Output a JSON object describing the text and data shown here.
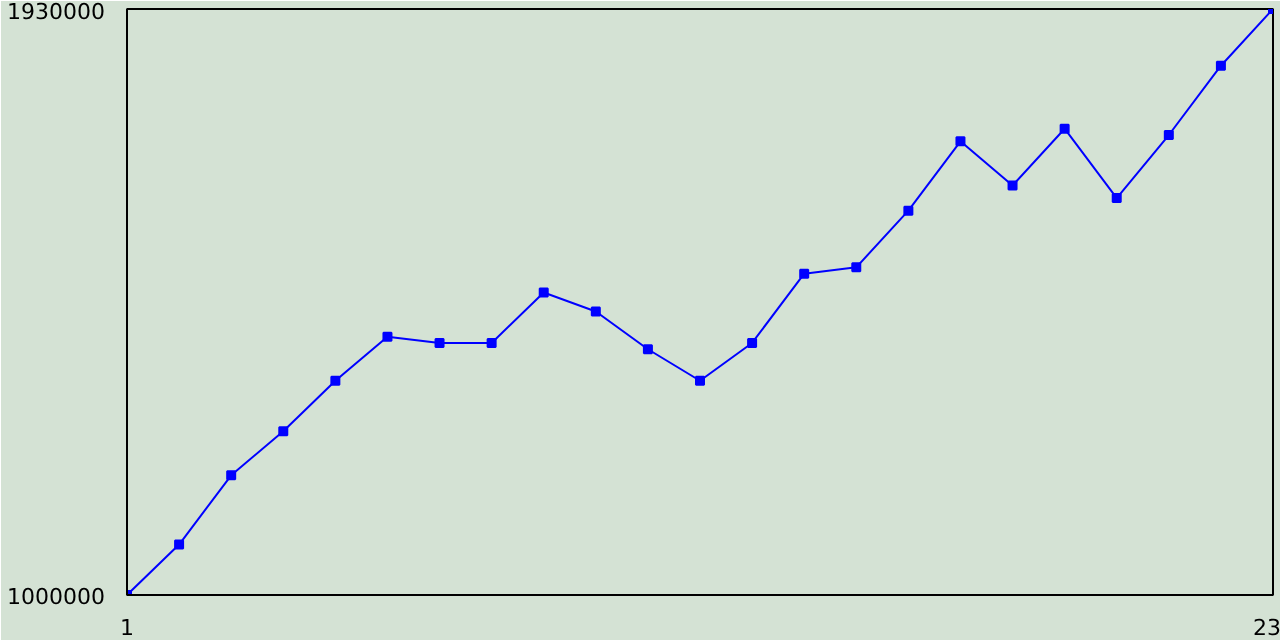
{
  "chart_data": {
    "type": "line",
    "x": [
      1,
      2,
      3,
      4,
      5,
      6,
      7,
      8,
      9,
      10,
      11,
      12,
      13,
      14,
      15,
      16,
      17,
      18,
      19,
      20,
      21,
      22,
      23
    ],
    "series": [
      {
        "color": "#0000ff",
        "values": [
          1000000,
          1080000,
          1190000,
          1260000,
          1340000,
          1410000,
          1400000,
          1400000,
          1480000,
          1450000,
          1390000,
          1340000,
          1400000,
          1510000,
          1520000,
          1610000,
          1720000,
          1650000,
          1740000,
          1630000,
          1730000,
          1840000,
          1930000
        ]
      }
    ],
    "xlim": [
      1,
      23
    ],
    "ylim": [
      1000000,
      1930000
    ],
    "xticks": [
      1,
      23
    ],
    "yticks": [
      1000000,
      1930000
    ],
    "marker": "square",
    "line_style": "solid"
  }
}
